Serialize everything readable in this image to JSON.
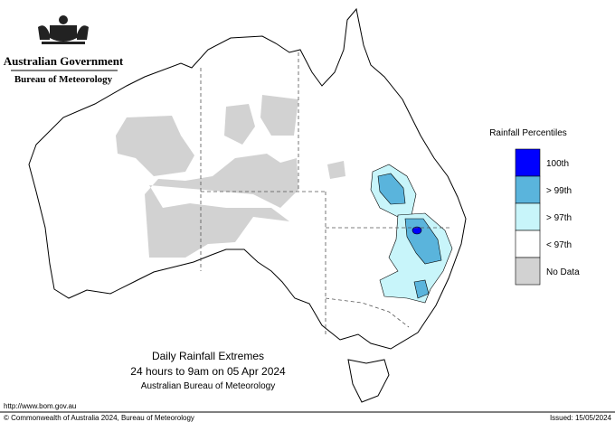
{
  "header": {
    "government": "Australian Government",
    "agency": "Bureau of Meteorology"
  },
  "legend": {
    "title": "Rainfall Percentiles",
    "items": [
      {
        "label": "100th",
        "color": "#0000ff"
      },
      {
        "label": "> 99th",
        "color": "#5ab4dc"
      },
      {
        "label": "> 97th",
        "color": "#c8f5fa"
      },
      {
        "label": "< 97th",
        "color": "#ffffff"
      },
      {
        "label": "No Data",
        "color": "#d2d2d2"
      }
    ]
  },
  "caption": {
    "title": "Daily Rainfall Extremes",
    "period": "24 hours to 9am on 05 Apr 2024",
    "source": "Australian Bureau of Meteorology"
  },
  "footer": {
    "url": "http://www.bom.gov.au",
    "copyright": "© Commonwealth of Australia 2024, Bureau of Meteorology",
    "issued": "Issued: 15/05/2024"
  }
}
